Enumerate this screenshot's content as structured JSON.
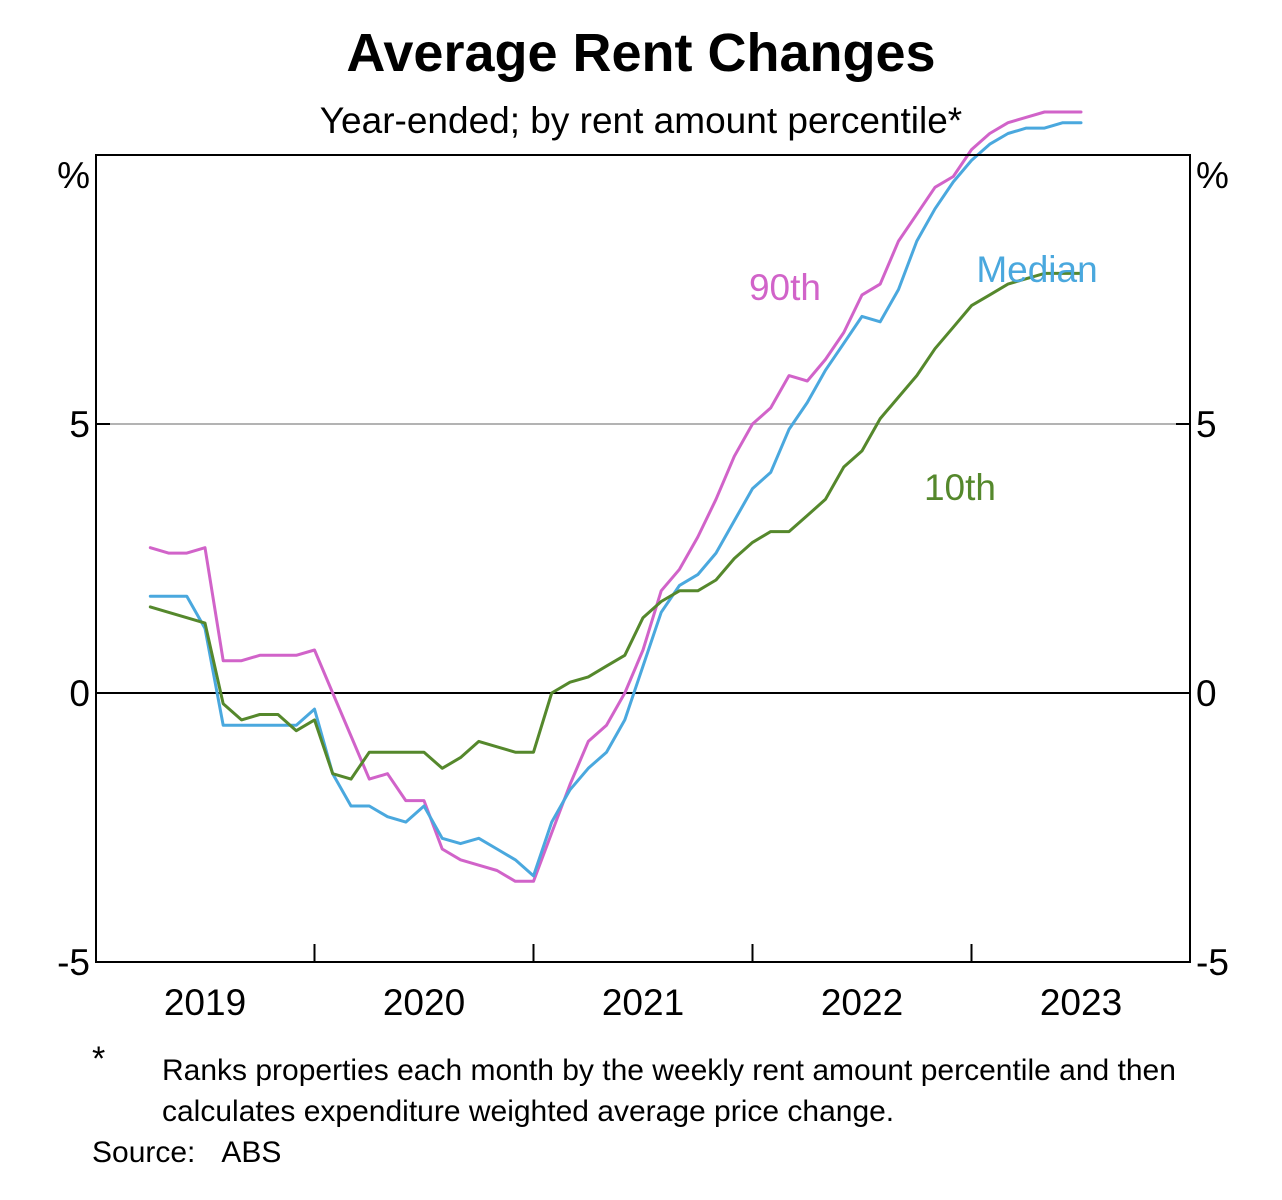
{
  "title": "Average Rent Changes",
  "subtitle": "Year-ended; by rent amount percentile*",
  "footnote": {
    "marker": "*",
    "text": "Ranks properties each month by the weekly rent amount percentile and then calculates expenditure weighted average price change."
  },
  "source": {
    "label": "Source:",
    "value": "ABS"
  },
  "colors": {
    "p90": "#d163c9",
    "median": "#4aa8de",
    "p10": "#55882c",
    "grid": "#b3b3b3",
    "axis": "#000000"
  },
  "chart_data": {
    "type": "line",
    "title": "Average Rent Changes",
    "subtitle": "Year-ended; by rent amount percentile*",
    "y_unit_label": "%",
    "ylim": [
      -5,
      10
    ],
    "yticks": [
      -5,
      0,
      5
    ],
    "xlim": [
      2018.5,
      2023.5
    ],
    "x_tick_labels": [
      "2019",
      "2020",
      "2021",
      "2022",
      "2023"
    ],
    "x_tick_positions": [
      2019,
      2020,
      2021,
      2022,
      2023
    ],
    "grid": "horizontal at 5",
    "x": [
      2018.75,
      2018.8333,
      2018.9167,
      2019.0,
      2019.0833,
      2019.1667,
      2019.25,
      2019.3333,
      2019.4167,
      2019.5,
      2019.5833,
      2019.6667,
      2019.75,
      2019.8333,
      2019.9167,
      2020.0,
      2020.0833,
      2020.1667,
      2020.25,
      2020.3333,
      2020.4167,
      2020.5,
      2020.5833,
      2020.6667,
      2020.75,
      2020.8333,
      2020.9167,
      2021.0,
      2021.0833,
      2021.1667,
      2021.25,
      2021.3333,
      2021.4167,
      2021.5,
      2021.5833,
      2021.6667,
      2021.75,
      2021.8333,
      2021.9167,
      2022.0,
      2022.0833,
      2022.1667,
      2022.25,
      2022.3333,
      2022.4167,
      2022.5,
      2022.5833,
      2022.6667,
      2022.75,
      2022.8333,
      2022.9167,
      2023.0,
      2023.0833
    ],
    "series": [
      {
        "name": "90th",
        "key": "p90",
        "values": [
          2.7,
          2.6,
          2.6,
          2.7,
          0.6,
          0.6,
          0.7,
          0.7,
          0.7,
          0.8,
          0.0,
          -0.8,
          -1.6,
          -1.5,
          -2.0,
          -2.0,
          -2.9,
          -3.1,
          -3.2,
          -3.3,
          -3.5,
          -3.5,
          -2.6,
          -1.7,
          -0.9,
          -0.6,
          0.0,
          0.8,
          1.9,
          2.3,
          2.9,
          3.6,
          4.4,
          5.0,
          5.3,
          5.9,
          5.8,
          6.2,
          6.7,
          7.4,
          7.6,
          8.4,
          8.9,
          9.4,
          9.6,
          10.1,
          10.4,
          10.6,
          10.7,
          10.8,
          10.8,
          10.8,
          10.8
        ]
      },
      {
        "name": "Median",
        "key": "median",
        "values": [
          1.8,
          1.8,
          1.8,
          1.2,
          -0.6,
          -0.6,
          -0.6,
          -0.6,
          -0.6,
          -0.3,
          -1.5,
          -2.1,
          -2.1,
          -2.3,
          -2.4,
          -2.1,
          -2.7,
          -2.8,
          -2.7,
          -2.9,
          -3.1,
          -3.4,
          -2.4,
          -1.8,
          -1.4,
          -1.1,
          -0.5,
          0.5,
          1.5,
          2.0,
          2.2,
          2.6,
          3.2,
          3.8,
          4.1,
          4.9,
          5.4,
          6.0,
          6.5,
          7.0,
          6.9,
          7.5,
          8.4,
          9.0,
          9.5,
          9.9,
          10.2,
          10.4,
          10.5,
          10.5,
          10.6,
          10.6,
          10.6
        ]
      },
      {
        "name": "10th",
        "key": "p10",
        "values": [
          1.6,
          1.5,
          1.4,
          1.3,
          -0.2,
          -0.5,
          -0.4,
          -0.4,
          -0.7,
          -0.5,
          -1.5,
          -1.6,
          -1.1,
          -1.1,
          -1.1,
          -1.1,
          -1.4,
          -1.2,
          -0.9,
          -1.0,
          -1.1,
          -1.1,
          0.0,
          0.2,
          0.3,
          0.5,
          0.7,
          1.4,
          1.7,
          1.9,
          1.9,
          2.1,
          2.5,
          2.8,
          3.0,
          3.0,
          3.3,
          3.6,
          4.2,
          4.5,
          5.1,
          5.5,
          5.9,
          6.4,
          6.8,
          7.2,
          7.4,
          7.6,
          7.7,
          7.8,
          7.8,
          7.8,
          7.8
        ]
      }
    ],
    "series_labels": [
      {
        "text": "90th",
        "key": "p90"
      },
      {
        "text": "Median",
        "key": "median"
      },
      {
        "text": "10th",
        "key": "p10"
      }
    ]
  }
}
